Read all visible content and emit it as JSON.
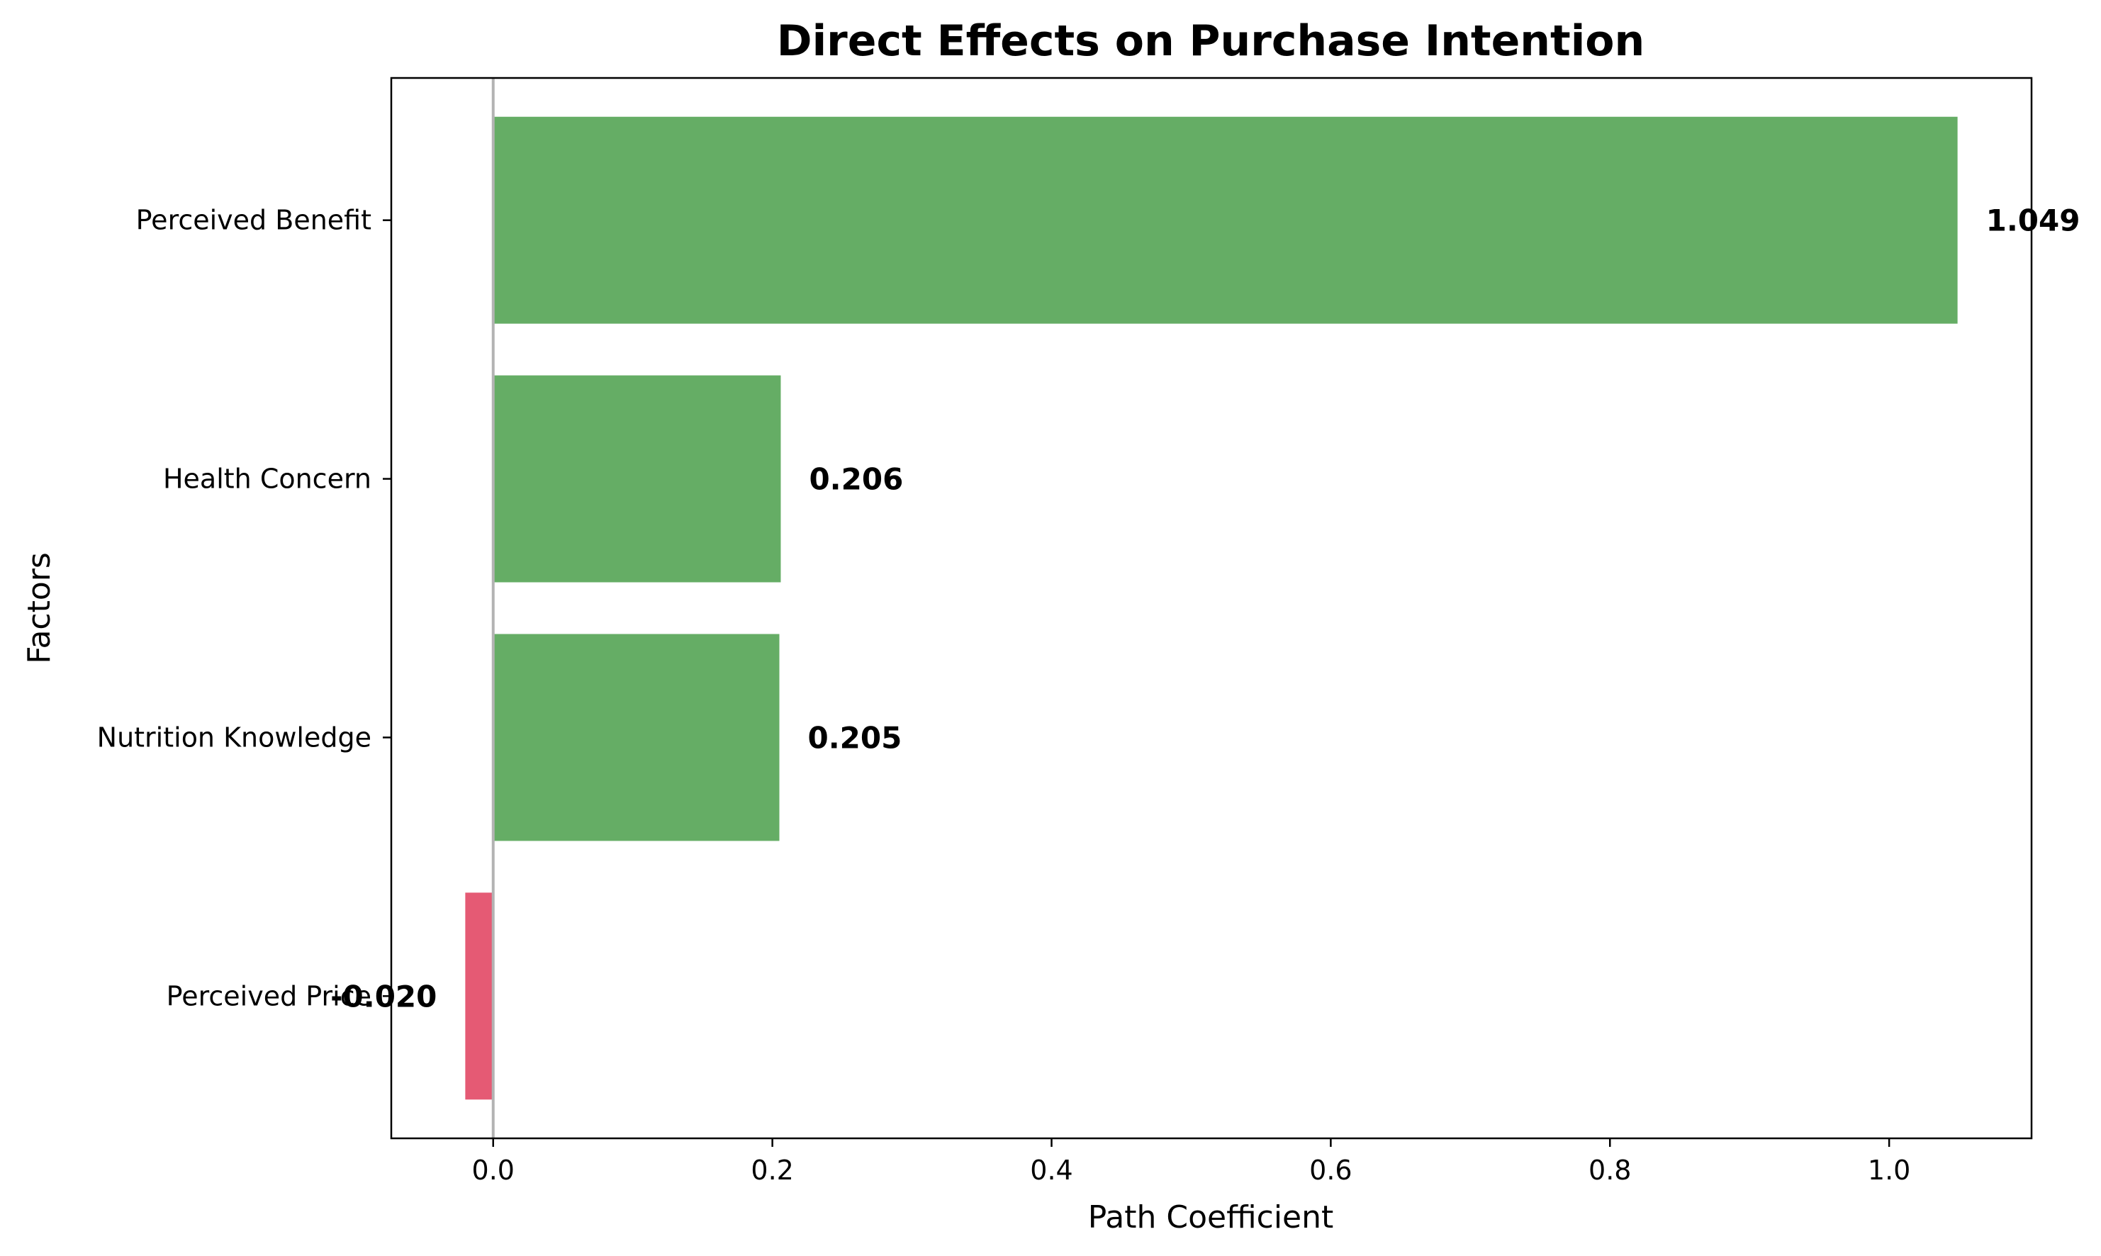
{
  "chart_data": {
    "type": "bar",
    "orientation": "horizontal",
    "title": "Direct Effects on Purchase Intention",
    "xlabel": "Path Coefficient",
    "ylabel": "Factors",
    "categories": [
      "Perceived Benefit",
      "Health Concern",
      "Nutrition Knowledge",
      "Perceived Price"
    ],
    "values": [
      1.049,
      0.206,
      0.205,
      -0.02
    ],
    "value_labels": [
      "1.049",
      "0.206",
      "0.205",
      "-0.020"
    ],
    "xlim": [
      -0.073,
      1.102
    ],
    "xticks": [
      0.0,
      0.2,
      0.4,
      0.6,
      0.8,
      1.0
    ],
    "xtick_labels": [
      "0.0",
      "0.2",
      "0.4",
      "0.6",
      "0.8",
      "1.0"
    ],
    "grid": false,
    "zero_line": true,
    "colors": {
      "positive": "#65ad65",
      "negative": "#e55a74",
      "zero_line": "#b3b3b3"
    }
  }
}
